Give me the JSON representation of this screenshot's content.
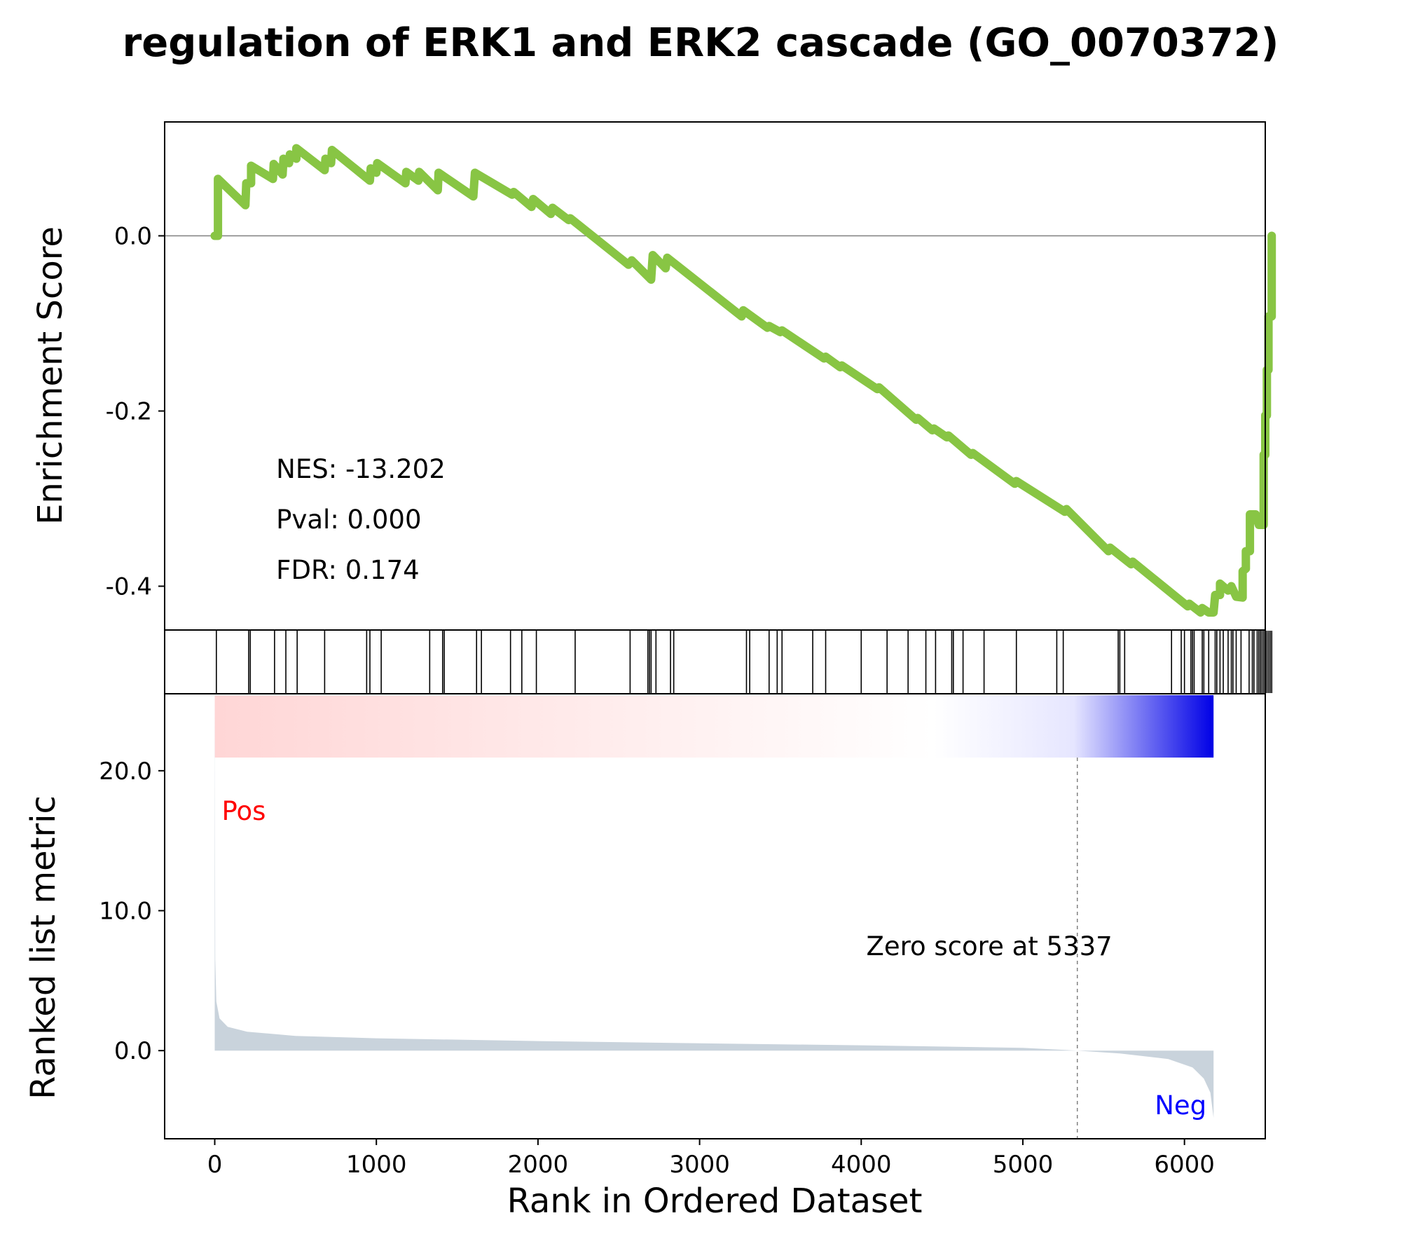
{
  "chart_data": {
    "type": "line",
    "title": "regulation of ERK1 and ERK2 cascade (GO_0070372)",
    "xlabel": "Rank in Ordered Dataset",
    "xlim": [
      -310,
      6500
    ],
    "x_ticks": [
      0,
      1000,
      2000,
      3000,
      4000,
      5000,
      6000
    ],
    "es_panel": {
      "ylabel": "Enrichment Score",
      "ylim": [
        -0.45,
        0.13
      ],
      "y_ticks": [
        0.0,
        -0.2,
        -0.4
      ],
      "y_tick_labels": [
        "0.0",
        "-0.2",
        "-0.4"
      ],
      "series": [
        {
          "color": "#88c544",
          "points": [
            [
              0,
              0.0
            ],
            [
              20,
              0.0
            ],
            [
              20,
              0.065
            ],
            [
              190,
              0.035
            ],
            [
              195,
              0.06
            ],
            [
              225,
              0.06
            ],
            [
              225,
              0.08
            ],
            [
              360,
              0.065
            ],
            [
              365,
              0.082
            ],
            [
              420,
              0.07
            ],
            [
              425,
              0.088
            ],
            [
              460,
              0.083
            ],
            [
              465,
              0.093
            ],
            [
              505,
              0.088
            ],
            [
              505,
              0.1
            ],
            [
              680,
              0.075
            ],
            [
              685,
              0.088
            ],
            [
              720,
              0.083
            ],
            [
              725,
              0.098
            ],
            [
              960,
              0.063
            ],
            [
              965,
              0.077
            ],
            [
              1000,
              0.072
            ],
            [
              1005,
              0.083
            ],
            [
              1180,
              0.06
            ],
            [
              1185,
              0.073
            ],
            [
              1260,
              0.063
            ],
            [
              1265,
              0.073
            ],
            [
              1380,
              0.052
            ],
            [
              1385,
              0.072
            ],
            [
              1600,
              0.045
            ],
            [
              1610,
              0.072
            ],
            [
              1840,
              0.047
            ],
            [
              1850,
              0.05
            ],
            [
              1960,
              0.033
            ],
            [
              1970,
              0.042
            ],
            [
              2080,
              0.025
            ],
            [
              2090,
              0.032
            ],
            [
              2190,
              0.018
            ],
            [
              2200,
              0.02
            ],
            [
              2560,
              -0.033
            ],
            [
              2580,
              -0.028
            ],
            [
              2700,
              -0.05
            ],
            [
              2710,
              -0.022
            ],
            [
              2790,
              -0.037
            ],
            [
              2800,
              -0.025
            ],
            [
              3260,
              -0.092
            ],
            [
              3270,
              -0.085
            ],
            [
              3420,
              -0.105
            ],
            [
              3430,
              -0.103
            ],
            [
              3500,
              -0.11
            ],
            [
              3510,
              -0.108
            ],
            [
              3770,
              -0.14
            ],
            [
              3780,
              -0.138
            ],
            [
              3870,
              -0.15
            ],
            [
              3880,
              -0.148
            ],
            [
              4100,
              -0.175
            ],
            [
              4110,
              -0.173
            ],
            [
              4340,
              -0.21
            ],
            [
              4350,
              -0.208
            ],
            [
              4440,
              -0.222
            ],
            [
              4450,
              -0.22
            ],
            [
              4530,
              -0.23
            ],
            [
              4540,
              -0.228
            ],
            [
              4680,
              -0.25
            ],
            [
              4690,
              -0.248
            ],
            [
              4950,
              -0.283
            ],
            [
              4960,
              -0.28
            ],
            [
              5260,
              -0.315
            ],
            [
              5270,
              -0.312
            ],
            [
              5530,
              -0.36
            ],
            [
              5540,
              -0.356
            ],
            [
              5670,
              -0.375
            ],
            [
              5680,
              -0.372
            ],
            [
              6020,
              -0.423
            ],
            [
              6030,
              -0.42
            ],
            [
              6100,
              -0.43
            ],
            [
              6110,
              -0.425
            ],
            [
              6150,
              -0.43
            ],
            [
              6180,
              -0.43
            ],
            [
              6190,
              -0.41
            ],
            [
              6220,
              -0.41
            ],
            [
              6220,
              -0.397
            ],
            [
              6270,
              -0.405
            ],
            [
              6290,
              -0.4
            ],
            [
              6320,
              -0.412
            ],
            [
              6360,
              -0.413
            ],
            [
              6360,
              -0.383
            ],
            [
              6380,
              -0.38
            ],
            [
              6380,
              -0.36
            ],
            [
              6405,
              -0.36
            ],
            [
              6405,
              -0.318
            ],
            [
              6440,
              -0.318
            ],
            [
              6460,
              -0.33
            ],
            [
              6490,
              -0.33
            ],
            [
              6490,
              -0.25
            ],
            [
              6500,
              -0.25
            ],
            [
              6500,
              -0.205
            ],
            [
              6510,
              -0.205
            ],
            [
              6510,
              -0.153
            ],
            [
              6520,
              -0.153
            ],
            [
              6520,
              -0.092
            ],
            [
              6540,
              -0.092
            ],
            [
              6540,
              0.0
            ]
          ]
        }
      ],
      "annotations": [
        "NES: -13.202",
        "Pval: 0.000",
        "FDR: 0.174"
      ],
      "stat_pos_x": 380
    },
    "hits_panel": {
      "positions": [
        10,
        210,
        220,
        370,
        440,
        510,
        680,
        940,
        960,
        1030,
        1330,
        1410,
        1420,
        1620,
        1650,
        1830,
        1900,
        1990,
        2230,
        2570,
        2680,
        2690,
        2700,
        2730,
        2820,
        2840,
        3290,
        3310,
        3430,
        3480,
        3510,
        3700,
        3780,
        4000,
        4160,
        4290,
        4400,
        4460,
        4560,
        4570,
        4630,
        4760,
        4960,
        5210,
        5250,
        5590,
        5600,
        5630,
        5920,
        5980,
        6000,
        6040,
        6050,
        6060,
        6110,
        6120,
        6150,
        6190,
        6200,
        6220,
        6240,
        6270,
        6290,
        6300,
        6320,
        6350,
        6400,
        6420,
        6430,
        6450,
        6460,
        6470,
        6480,
        6490,
        6500,
        6510,
        6520,
        6530,
        6540
      ]
    },
    "gradient_bar": {
      "xrange": [
        0,
        6180
      ],
      "colors": [
        "#ffd6d6",
        "#ffffff",
        "#0000e6"
      ],
      "stops": [
        0,
        0.72,
        1
      ]
    },
    "metric_panel": {
      "ylabel": "Ranked list metric",
      "ylim": [
        -6.3,
        25.5
      ],
      "y_ticks": [
        0.0,
        10.0,
        20.0
      ],
      "y_tick_labels": [
        "0.0",
        "10.0",
        "20.0"
      ],
      "fill_color": "#c9d3dc",
      "curve": [
        [
          0,
          25
        ],
        [
          3,
          6.5
        ],
        [
          10,
          3.5
        ],
        [
          30,
          2.3
        ],
        [
          80,
          1.7
        ],
        [
          200,
          1.35
        ],
        [
          500,
          1.05
        ],
        [
          1000,
          0.88
        ],
        [
          2000,
          0.68
        ],
        [
          3000,
          0.52
        ],
        [
          4000,
          0.38
        ],
        [
          5000,
          0.2
        ],
        [
          5337,
          0.0
        ],
        [
          5600,
          -0.2
        ],
        [
          5900,
          -0.6
        ],
        [
          6050,
          -1.2
        ],
        [
          6120,
          -2.0
        ],
        [
          6160,
          -3.0
        ],
        [
          6180,
          -4.8
        ]
      ],
      "zero_cross_x": 5337,
      "zero_label": "Zero score at 5337",
      "pos_label": "Pos",
      "neg_label": "Neg",
      "pos_color": "#ff0000",
      "neg_color": "#0000ff"
    }
  }
}
